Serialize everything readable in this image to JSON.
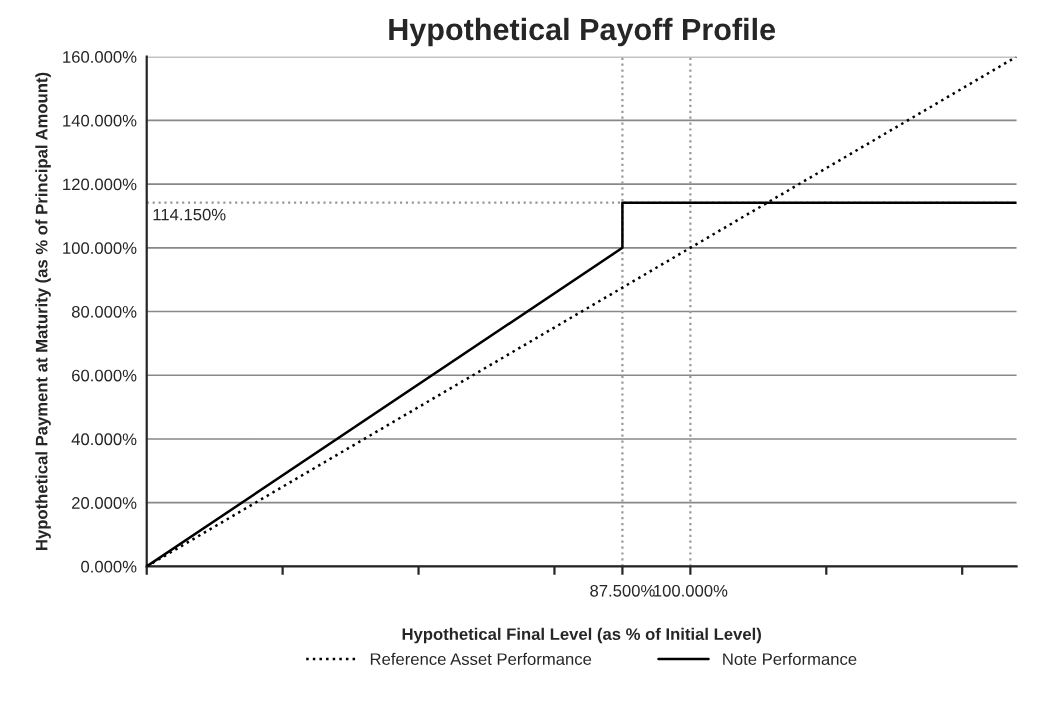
{
  "chart_data": {
    "type": "line",
    "title": "Hypothetical Payoff Profile",
    "xlabel": "Hypothetical Final Level (as % of Initial Level)",
    "ylabel": "Hypothetical Payment at Maturity (as % of Principal Amount)",
    "xlim": [
      0,
      160
    ],
    "xticks": [
      {
        "value": 0,
        "label": null
      },
      {
        "value": 25,
        "label": null
      },
      {
        "value": 50,
        "label": null
      },
      {
        "value": 75,
        "label": null
      },
      {
        "value": 87.5,
        "label": "87.500%"
      },
      {
        "value": 100,
        "label": "100.000%"
      },
      {
        "value": 125,
        "label": null
      },
      {
        "value": 150,
        "label": null
      }
    ],
    "ylim": [
      0,
      160
    ],
    "yticks": [
      {
        "value": 0,
        "label": "0.000%"
      },
      {
        "value": 20,
        "label": "20.000%"
      },
      {
        "value": 40,
        "label": "40.000%"
      },
      {
        "value": 60,
        "label": "60.000%"
      },
      {
        "value": 80,
        "label": "80.000%"
      },
      {
        "value": 100,
        "label": "100.000%"
      },
      {
        "value": 120,
        "label": "120.000%"
      },
      {
        "value": 140,
        "label": "140.000%"
      },
      {
        "value": 160,
        "label": "160.000%"
      }
    ],
    "grid": "y",
    "legend": "bottom",
    "series": [
      {
        "name": "Reference Asset Performance",
        "color": "#000000",
        "line_style": "dotted",
        "x": [
          0,
          160
        ],
        "values": [
          0,
          160
        ]
      },
      {
        "name": "Note Performance",
        "color": "#000000",
        "line_style": "solid",
        "x": [
          0,
          87.5,
          87.5,
          160
        ],
        "values": [
          0,
          100,
          114.15,
          114.15
        ]
      }
    ],
    "ref_lines": [
      {
        "axis": "x",
        "value": 87.5,
        "color": "#999999",
        "line_style": "dotted"
      },
      {
        "axis": "x",
        "value": 100,
        "color": "#999999",
        "line_style": "dotted"
      },
      {
        "axis": "y",
        "value": 114.15,
        "label": "114.150%",
        "color": "#999999",
        "line_style": "dotted"
      }
    ]
  }
}
